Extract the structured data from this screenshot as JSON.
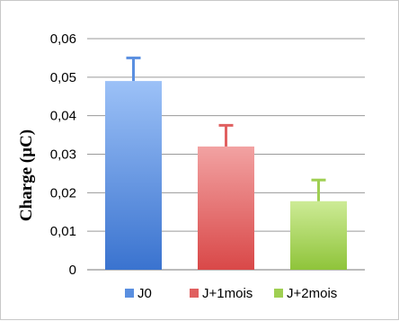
{
  "chart_data": {
    "type": "bar",
    "title": "",
    "xlabel": "",
    "ylabel": "Charge (µC)",
    "ylim": [
      0,
      0.06
    ],
    "yticks": [
      "0",
      "0,01",
      "0,02",
      "0,03",
      "0,04",
      "0,05",
      "0,06"
    ],
    "ytick_values": [
      0,
      0.01,
      0.02,
      0.03,
      0.04,
      0.05,
      0.06
    ],
    "grid": true,
    "legend_position": "bottom",
    "series": [
      {
        "name": "J0",
        "values": [
          0.049
        ],
        "error": [
          0.006
        ],
        "color": "#5a8fe0"
      },
      {
        "name": "J+1mois",
        "values": [
          0.032
        ],
        "error": [
          0.0055
        ],
        "color": "#e06060"
      },
      {
        "name": "J+2mois",
        "values": [
          0.0178
        ],
        "error": [
          0.0055
        ],
        "color": "#9fcf52"
      }
    ]
  }
}
